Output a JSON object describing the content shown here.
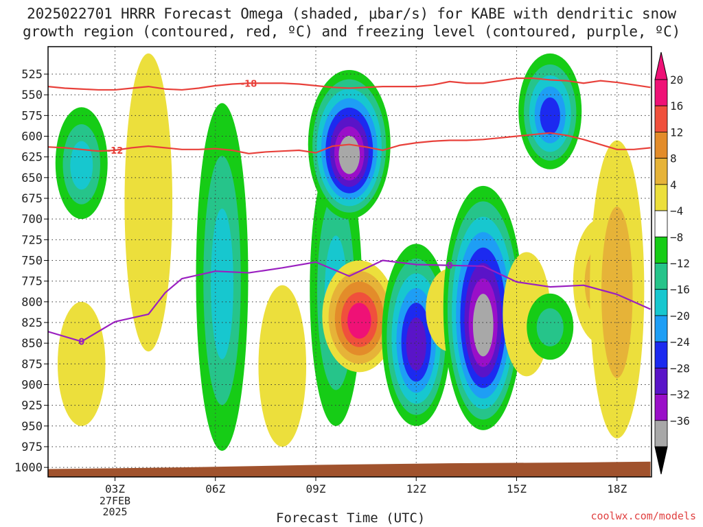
{
  "title_line1": "2025022701 HRRR Forecast Omega (shaded, μbar/s) for KABE with dendritic snow",
  "title_line2": "growth region (contoured, red, ºC) and freezing level (contoured, purple, ºC)",
  "credit": "coolwx.com/models",
  "colors": {
    "neg36": "#000000",
    "neg32": "#a8a8a8",
    "neg28": "#9a0fc8",
    "neg24": "#5a14c8",
    "neg20": "#1c2af0",
    "neg16": "#1e9ef5",
    "neg12": "#17c7cf",
    "neg8": "#26c48a",
    "neg4": "#16cc16",
    "zero": "#ffffff",
    "pos4": "#ecdf3c",
    "pos8": "#e6b338",
    "pos12": "#e38c2a",
    "pos16": "#f0503c",
    "pos20": "#ef1176",
    "dgz_line": "#e8403a",
    "freezing_line": "#9a1fc0",
    "ground": "#a0522d"
  },
  "chart_data": {
    "type": "heatmap",
    "xlabel": "Forecast Time (UTC)",
    "ylabel": "",
    "x_ticks": [
      {
        "hour": 3,
        "label": "03Z",
        "sub": [
          "27FEB",
          "2025"
        ]
      },
      {
        "hour": 6,
        "label": "06Z",
        "sub": []
      },
      {
        "hour": 9,
        "label": "09Z",
        "sub": []
      },
      {
        "hour": 12,
        "label": "12Z",
        "sub": []
      },
      {
        "hour": 15,
        "label": "15Z",
        "sub": []
      },
      {
        "hour": 18,
        "label": "18Z",
        "sub": []
      }
    ],
    "xlim": [
      1,
      19
    ],
    "ylim": [
      1000,
      500
    ],
    "y_ticks": [
      525,
      550,
      575,
      600,
      625,
      650,
      675,
      700,
      725,
      750,
      775,
      800,
      825,
      850,
      875,
      900,
      925,
      950,
      975,
      1000
    ],
    "colorbar": {
      "levels": [
        20,
        16,
        12,
        8,
        4,
        -4,
        -8,
        -12,
        -16,
        -20,
        -24,
        -28,
        -32,
        -36
      ],
      "bins": [
        {
          "color": "#ef1176"
        },
        {
          "color": "#f0503c"
        },
        {
          "color": "#e38c2a"
        },
        {
          "color": "#e6b338"
        },
        {
          "color": "#ecdf3c"
        },
        {
          "color": "#ffffff"
        },
        {
          "color": "#16cc16"
        },
        {
          "color": "#26c48a"
        },
        {
          "color": "#17c7cf"
        },
        {
          "color": "#1e9ef5"
        },
        {
          "color": "#1c2af0"
        },
        {
          "color": "#5a14c8"
        },
        {
          "color": "#9a0fc8"
        },
        {
          "color": "#a8a8a8"
        }
      ],
      "top_arrow_color": "#ef1176",
      "bottom_arrow_color": "#000000"
    },
    "omega_features": [
      {
        "hour": 2.0,
        "p_top": 565,
        "p_bottom": 700,
        "peak": -12
      },
      {
        "hour": 2.0,
        "p_top": 800,
        "p_bottom": 950,
        "peak": 4
      },
      {
        "hour": 4.0,
        "p_top": 500,
        "p_bottom": 860,
        "peak": 4
      },
      {
        "hour": 6.2,
        "p_top": 560,
        "p_bottom": 980,
        "peak": -12
      },
      {
        "hour": 8.0,
        "p_top": 780,
        "p_bottom": 975,
        "peak": 4
      },
      {
        "hour": 9.6,
        "p_top": 620,
        "p_bottom": 950,
        "peak": -12
      },
      {
        "hour": 10.0,
        "p_top": 520,
        "p_bottom": 700,
        "peak": -36
      },
      {
        "hour": 10.3,
        "p_top": 750,
        "p_bottom": 885,
        "peak": 20
      },
      {
        "hour": 12.0,
        "p_top": 730,
        "p_bottom": 950,
        "peak": -24
      },
      {
        "hour": 13.0,
        "p_top": 760,
        "p_bottom": 860,
        "peak": 4
      },
      {
        "hour": 14.0,
        "p_top": 660,
        "p_bottom": 955,
        "peak": -32
      },
      {
        "hour": 15.3,
        "p_top": 740,
        "p_bottom": 890,
        "peak": 4
      },
      {
        "hour": 16.0,
        "p_top": 500,
        "p_bottom": 640,
        "peak": -20
      },
      {
        "hour": 16.0,
        "p_top": 790,
        "p_bottom": 870,
        "peak": -8
      },
      {
        "hour": 17.5,
        "p_top": 700,
        "p_bottom": 850,
        "peak": 8
      },
      {
        "hour": 18.0,
        "p_top": 605,
        "p_bottom": 965,
        "peak": 8
      }
    ],
    "series": [
      {
        "label": "-18",
        "hours": [
          1,
          1.5,
          2,
          2.5,
          3,
          3.5,
          4,
          4.5,
          5,
          5.5,
          6,
          6.5,
          7,
          7.5,
          8,
          8.5,
          9,
          9.5,
          10,
          10.5,
          11,
          11.5,
          12,
          12.5,
          13,
          13.5,
          14,
          14.5,
          15,
          15.5,
          16,
          16.5,
          17,
          17.5,
          18,
          18.5,
          19
        ],
        "pressure": [
          540,
          542,
          543,
          544,
          544,
          542,
          540,
          543,
          544,
          542,
          539,
          537,
          536,
          536,
          536,
          537,
          539,
          541,
          542,
          541,
          540,
          540,
          540,
          538,
          534,
          536,
          536,
          533,
          530,
          530,
          532,
          533,
          536,
          533,
          535,
          538,
          541
        ]
      },
      {
        "label": "-12",
        "hours": [
          1,
          1.5,
          2,
          2.5,
          3,
          3.5,
          4,
          4.5,
          5,
          5.5,
          6,
          6.5,
          7,
          7.5,
          8,
          8.5,
          9,
          9.5,
          10,
          10.5,
          11,
          11.5,
          12,
          12.5,
          13,
          13.5,
          14,
          14.5,
          15,
          15.5,
          16,
          16.5,
          17,
          17.5,
          18,
          18.5,
          19
        ],
        "pressure": [
          613,
          614,
          616,
          618,
          617,
          614,
          612,
          614,
          616,
          616,
          615,
          617,
          621,
          619,
          618,
          617,
          620,
          612,
          610,
          613,
          617,
          611,
          608,
          606,
          605,
          605,
          604,
          602,
          600,
          598,
          596,
          599,
          604,
          610,
          616,
          616,
          614
        ]
      },
      {
        "label": "0",
        "hours": [
          1,
          2,
          2.5,
          3,
          4,
          4.5,
          5,
          6,
          7,
          8,
          9,
          10,
          11,
          12,
          13,
          14,
          15,
          16,
          17,
          18,
          19
        ],
        "pressure": [
          836,
          848,
          836,
          824,
          815,
          789,
          772,
          763,
          765,
          759,
          752,
          769,
          750,
          755,
          756,
          757,
          776,
          782,
          780,
          791,
          809
        ]
      }
    ],
    "ground_pressure": {
      "hours": [
        1,
        5,
        9,
        13,
        17,
        19
      ],
      "pressure": [
        1002,
        1000,
        997,
        995,
        994,
        993
      ]
    }
  }
}
